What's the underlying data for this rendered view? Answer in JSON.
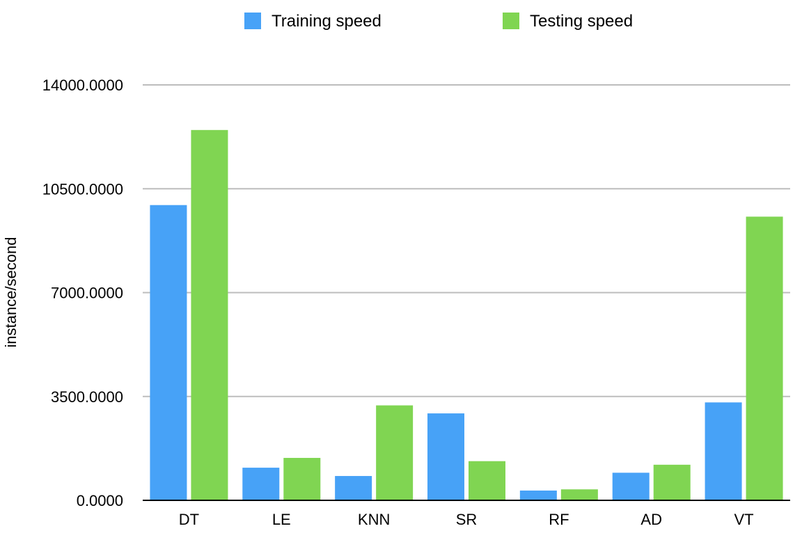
{
  "chart_data": {
    "type": "bar",
    "title": "",
    "xlabel": "",
    "ylabel": "instance/second",
    "ylim": [
      0,
      14000
    ],
    "yticks": [
      0,
      3500,
      7000,
      10500,
      14000
    ],
    "ytick_labels": [
      "0.0000",
      "3500.0000",
      "7000.0000",
      "10500.0000",
      "14000.0000"
    ],
    "grid": true,
    "legend_position": "top",
    "categories": [
      "DT",
      "LE",
      "KNN",
      "SR",
      "RF",
      "AD",
      "VT"
    ],
    "series": [
      {
        "name": "Training speed",
        "color": "#47a2f7",
        "values": [
          9950,
          1100,
          820,
          2930,
          330,
          930,
          3300
        ]
      },
      {
        "name": "Testing speed",
        "color": "#80d552",
        "values": [
          12480,
          1430,
          3200,
          1320,
          370,
          1200,
          9560
        ]
      }
    ]
  }
}
